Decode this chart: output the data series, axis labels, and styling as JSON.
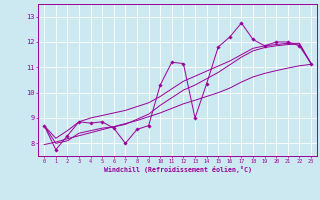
{
  "xlabel": "Windchill (Refroidissement éolien,°C)",
  "x_data": [
    0,
    1,
    2,
    3,
    4,
    5,
    6,
    7,
    8,
    9,
    10,
    11,
    12,
    13,
    14,
    15,
    16,
    17,
    18,
    19,
    20,
    21,
    22,
    23
  ],
  "y_zigzag": [
    8.7,
    7.75,
    8.3,
    8.85,
    8.8,
    8.85,
    8.6,
    8.0,
    8.55,
    8.7,
    10.3,
    11.2,
    11.15,
    9.0,
    10.35,
    11.8,
    12.2,
    12.75,
    12.1,
    11.85,
    12.0,
    12.0,
    11.85,
    11.15
  ],
  "y_line1": [
    8.7,
    8.2,
    8.5,
    8.85,
    9.0,
    9.1,
    9.2,
    9.3,
    9.45,
    9.6,
    9.85,
    10.15,
    10.45,
    10.65,
    10.85,
    11.05,
    11.25,
    11.5,
    11.75,
    11.85,
    11.9,
    11.95,
    11.95,
    11.15
  ],
  "y_line2": [
    8.7,
    8.0,
    8.1,
    8.4,
    8.5,
    8.6,
    8.65,
    8.75,
    8.95,
    9.15,
    9.5,
    9.8,
    10.1,
    10.3,
    10.55,
    10.8,
    11.1,
    11.4,
    11.65,
    11.78,
    11.85,
    11.9,
    11.92,
    11.15
  ],
  "y_trend": [
    7.95,
    8.05,
    8.18,
    8.3,
    8.42,
    8.54,
    8.66,
    8.78,
    8.9,
    9.05,
    9.2,
    9.38,
    9.56,
    9.7,
    9.85,
    10.0,
    10.18,
    10.42,
    10.62,
    10.76,
    10.87,
    10.97,
    11.06,
    11.12
  ],
  "line_color": "#990099",
  "bg_color": "#cce8f0",
  "grid_color": "#ffffff",
  "ylim": [
    7.5,
    13.5
  ],
  "xlim": [
    -0.5,
    23.5
  ],
  "yticks": [
    8,
    9,
    10,
    11,
    12,
    13
  ]
}
